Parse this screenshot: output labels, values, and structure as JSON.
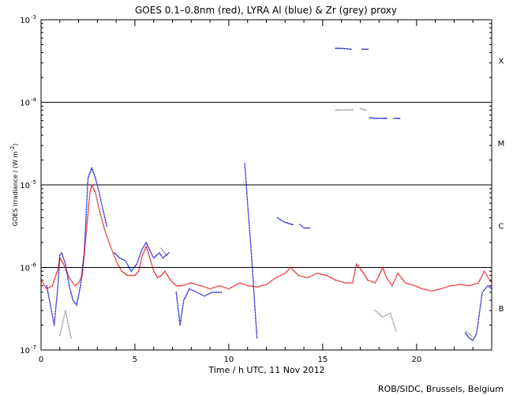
{
  "chart_data": {
    "type": "scatter",
    "title": "GOES 0.1–0.8nm (red), LYRA Al (blue) & Zr (grey) proxy",
    "xlabel": "Time / h UTC, 11 Nov 2012",
    "ylabel": "GOES Irradiance / (W m",
    "ylabel_exp": "-2",
    "ylabel_close": ")",
    "xlim": [
      0,
      24
    ],
    "ylim": [
      1e-07,
      0.001
    ],
    "yscale": "log",
    "x_ticks": [
      {
        "value": 0,
        "label": "0"
      },
      {
        "value": 5,
        "label": "5"
      },
      {
        "value": 10,
        "label": "10"
      },
      {
        "value": 15,
        "label": "15"
      },
      {
        "value": 20,
        "label": "20"
      }
    ],
    "y_ticks": [
      {
        "value": 1e-07,
        "base": "10",
        "exp": "-7"
      },
      {
        "value": 1e-06,
        "base": "10",
        "exp": "-6"
      },
      {
        "value": 1e-05,
        "base": "10",
        "exp": "-5"
      },
      {
        "value": 0.0001,
        "base": "10",
        "exp": "-4"
      },
      {
        "value": 0.001,
        "base": "10",
        "exp": "-3"
      }
    ],
    "class_lines": [
      1e-06,
      1e-05,
      0.0001
    ],
    "flare_classes": [
      {
        "label": "B",
        "y": 3.2e-07
      },
      {
        "label": "C",
        "y": 3.2e-06
      },
      {
        "label": "M",
        "y": 3.2e-05
      },
      {
        "label": "X",
        "y": 0.00032
      }
    ],
    "series": [
      {
        "color": "#e00000",
        "points": [
          [
            0,
            7e-07
          ],
          [
            0.3,
            5.5e-07
          ],
          [
            0.6,
            6e-07
          ],
          [
            0.9,
            9.5e-07
          ],
          [
            1.0,
            1.3e-06
          ],
          [
            1.2,
            1.1e-06
          ],
          [
            1.5,
            7.5e-07
          ],
          [
            1.8,
            6e-07
          ],
          [
            2.0,
            6.5e-07
          ],
          [
            2.2,
            8e-07
          ],
          [
            2.4,
            2.5e-06
          ],
          [
            2.6,
            8e-06
          ],
          [
            2.7,
            1e-05
          ],
          [
            2.9,
            8e-06
          ],
          [
            3.1,
            5e-06
          ],
          [
            3.4,
            2.8e-06
          ],
          [
            3.7,
            1.8e-06
          ],
          [
            4.0,
            1.2e-06
          ],
          [
            4.3,
            9e-07
          ],
          [
            4.6,
            8e-07
          ],
          [
            5.0,
            8e-07
          ],
          [
            5.2,
            9e-07
          ],
          [
            5.4,
            1.4e-06
          ],
          [
            5.6,
            1.8e-06
          ],
          [
            5.8,
            1.3e-06
          ],
          [
            6.0,
            9e-07
          ],
          [
            6.2,
            7.5e-07
          ],
          [
            6.4,
            8e-07
          ],
          [
            6.6,
            9e-07
          ],
          [
            6.9,
            7e-07
          ],
          [
            7.2,
            6e-07
          ],
          [
            7.5,
            6e-07
          ],
          [
            8.0,
            6.5e-07
          ],
          [
            8.5,
            6e-07
          ],
          [
            9.0,
            5.5e-07
          ],
          [
            9.5,
            6e-07
          ],
          [
            10.0,
            5.5e-07
          ],
          [
            10.3,
            6e-07
          ],
          [
            10.6,
            6.5e-07
          ],
          [
            11.0,
            6e-07
          ],
          [
            11.5,
            5.8e-07
          ],
          [
            12.0,
            6.2e-07
          ],
          [
            12.5,
            7.5e-07
          ],
          [
            13.0,
            8.5e-07
          ],
          [
            13.3,
            1e-06
          ],
          [
            13.7,
            8e-07
          ],
          [
            14.2,
            7.5e-07
          ],
          [
            14.7,
            8.5e-07
          ],
          [
            15.2,
            8e-07
          ],
          [
            15.7,
            7e-07
          ],
          [
            16.2,
            6.5e-07
          ],
          [
            16.6,
            6.5e-07
          ],
          [
            16.8,
            1.1e-06
          ],
          [
            17.1,
            9e-07
          ],
          [
            17.4,
            7e-07
          ],
          [
            17.8,
            6.5e-07
          ],
          [
            18.0,
            8e-07
          ],
          [
            18.2,
            1e-06
          ],
          [
            18.4,
            7.5e-07
          ],
          [
            18.7,
            6e-07
          ],
          [
            19.0,
            8.5e-07
          ],
          [
            19.4,
            6.5e-07
          ],
          [
            19.9,
            6e-07
          ],
          [
            20.3,
            5.5e-07
          ],
          [
            20.8,
            5.2e-07
          ],
          [
            21.3,
            5.5e-07
          ],
          [
            21.8,
            6e-07
          ],
          [
            22.3,
            6.2e-07
          ],
          [
            22.8,
            6e-07
          ],
          [
            23.3,
            6.5e-07
          ],
          [
            23.6,
            9e-07
          ],
          [
            24.0,
            6.5e-07
          ]
        ]
      },
      {
        "color": "#0000cc",
        "segments": [
          [
            [
              0.3,
              6e-07
            ],
            [
              0.5,
              3.5e-07
            ],
            [
              0.7,
              2e-07
            ],
            [
              0.9,
              6e-07
            ],
            [
              1.0,
              1.4e-06
            ],
            [
              1.1,
              1.5e-06
            ],
            [
              1.3,
              1.1e-06
            ],
            [
              1.5,
              6e-07
            ],
            [
              1.7,
              4e-07
            ],
            [
              1.9,
              3.5e-07
            ],
            [
              2.1,
              6e-07
            ],
            [
              2.3,
              1.5e-06
            ],
            [
              2.5,
              1.2e-05
            ],
            [
              2.7,
              1.6e-05
            ],
            [
              2.9,
              1.2e-05
            ],
            [
              3.1,
              8e-06
            ],
            [
              3.3,
              5e-06
            ],
            [
              3.5,
              3.2e-06
            ]
          ],
          [
            [
              3.9,
              1.5e-06
            ],
            [
              4.2,
              1.3e-06
            ],
            [
              4.5,
              1.2e-06
            ],
            [
              4.8,
              9e-07
            ],
            [
              5.1,
              1.1e-06
            ],
            [
              5.4,
              1.7e-06
            ],
            [
              5.6,
              2e-06
            ],
            [
              5.8,
              1.6e-06
            ],
            [
              6.0,
              1.3e-06
            ],
            [
              6.3,
              1.5e-06
            ],
            [
              6.5,
              1.3e-06
            ],
            [
              6.8,
              1.5e-06
            ]
          ],
          [
            [
              7.2,
              5e-07
            ],
            [
              7.4,
              2e-07
            ],
            [
              7.6,
              4e-07
            ],
            [
              7.9,
              5.5e-07
            ],
            [
              8.3,
              5e-07
            ],
            [
              8.7,
              4.5e-07
            ],
            [
              9.1,
              5e-07
            ],
            [
              9.6,
              5e-07
            ]
          ],
          [
            [
              10.85,
              1.8e-05
            ],
            [
              11.0,
              6e-06
            ],
            [
              11.2,
              1.5e-06
            ],
            [
              11.4,
              3e-07
            ],
            [
              11.5,
              1.4e-07
            ]
          ],
          [
            [
              12.6,
              4e-06
            ],
            [
              12.9,
              3.6e-06
            ],
            [
              13.2,
              3.4e-06
            ],
            [
              13.4,
              3.3e-06
            ]
          ],
          [
            [
              13.8,
              3.3e-06
            ],
            [
              14.0,
              3e-06
            ],
            [
              14.3,
              3e-06
            ]
          ],
          [
            [
              15.7,
              0.00045
            ],
            [
              16.0,
              0.00045
            ],
            [
              16.5,
              0.00044
            ]
          ],
          [
            [
              17.1,
              0.00044
            ],
            [
              17.4,
              0.00044
            ]
          ],
          [
            [
              17.5,
              6.5e-05
            ],
            [
              17.8,
              6.4e-05
            ],
            [
              18.2,
              6.4e-05
            ],
            [
              18.4,
              6.4e-05
            ]
          ],
          [
            [
              18.8,
              6.4e-05
            ],
            [
              19.1,
              6.4e-05
            ]
          ],
          [
            [
              22.6,
              1.6e-07
            ],
            [
              22.8,
              1.4e-07
            ],
            [
              23.0,
              1.3e-07
            ],
            [
              23.2,
              1.6e-07
            ],
            [
              23.5,
              5e-07
            ],
            [
              23.8,
              6e-07
            ],
            [
              24.0,
              5.5e-07
            ]
          ]
        ]
      },
      {
        "color": "#888888",
        "segments": [
          [
            [
              1.0,
              1.5e-07
            ],
            [
              1.3,
              3e-07
            ],
            [
              1.6,
              1.4e-07
            ]
          ],
          [
            [
              6.4,
              1.7e-06
            ],
            [
              6.7,
              1.4e-06
            ]
          ],
          [
            [
              15.7,
              8e-05
            ],
            [
              16.0,
              8.1e-05
            ],
            [
              16.6,
              8.1e-05
            ]
          ],
          [
            [
              17.0,
              8.4e-05
            ],
            [
              17.3,
              8e-05
            ]
          ],
          [
            [
              17.8,
              3e-07
            ],
            [
              18.2,
              2.5e-07
            ],
            [
              18.6,
              2.8e-07
            ],
            [
              18.9,
              1.7e-07
            ]
          ],
          [
            [
              22.6,
              1.7e-07
            ],
            [
              22.9,
              1.5e-07
            ]
          ]
        ]
      }
    ]
  },
  "credit": "ROB/SIDC, Brussels, Belgium"
}
